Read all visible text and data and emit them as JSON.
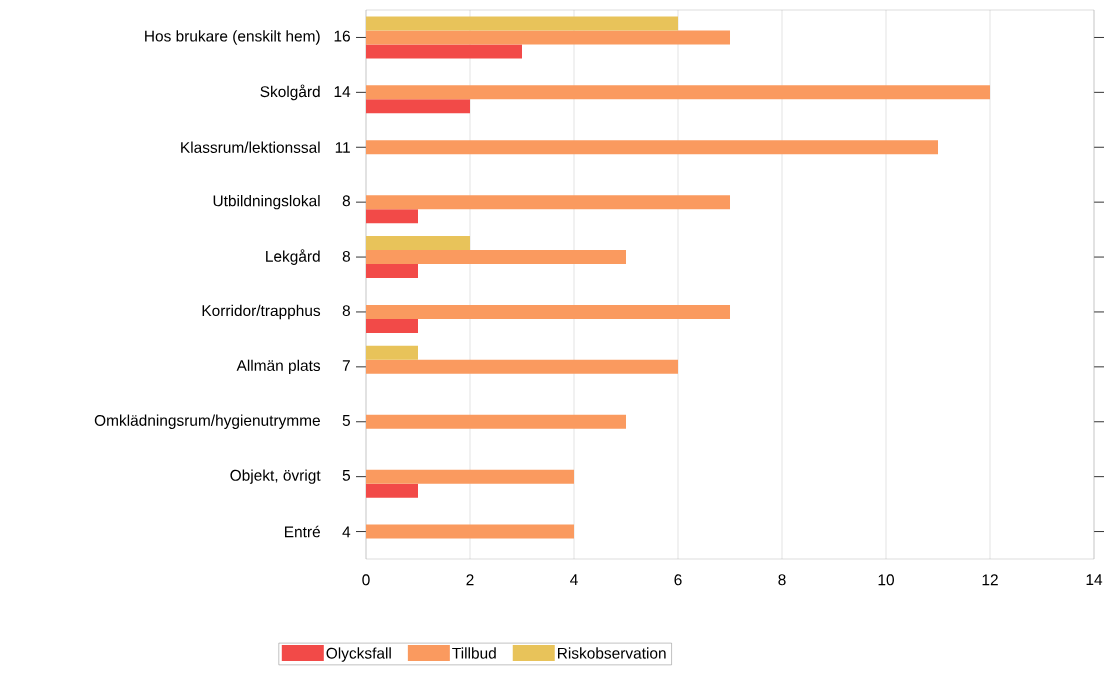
{
  "chart_data": {
    "type": "bar",
    "orientation": "horizontal",
    "categories": [
      "Hos brukare (enskilt hem)",
      "Skolgård",
      "Klassrum/lektionssal",
      "Utbildningslokal",
      "Lekgård",
      "Korridor/trapphus",
      "Allmän plats",
      "Omklädningsrum/hygienutrymme",
      "Objekt, övrigt",
      "Entré"
    ],
    "totals": [
      "16",
      "14",
      "11",
      "8",
      "8",
      "8",
      "7",
      "5",
      "5",
      "4"
    ],
    "series": [
      {
        "name": "Olycksfall",
        "color": "#f24a48",
        "values": [
          3,
          2,
          null,
          1,
          1,
          1,
          null,
          null,
          1,
          null
        ]
      },
      {
        "name": "Tillbud",
        "color": "#fa9a5f",
        "values": [
          7,
          12,
          11,
          7,
          5,
          7,
          6,
          5,
          4,
          4
        ]
      },
      {
        "name": "Riskobservation",
        "color": "#e8c35a",
        "values": [
          6,
          null,
          null,
          null,
          2,
          null,
          1,
          null,
          null,
          null
        ]
      }
    ],
    "xlim": [
      0,
      14
    ],
    "xticks": [
      0,
      2,
      4,
      6,
      8,
      10,
      12,
      14
    ],
    "grid": "x",
    "legend": "bottom"
  }
}
